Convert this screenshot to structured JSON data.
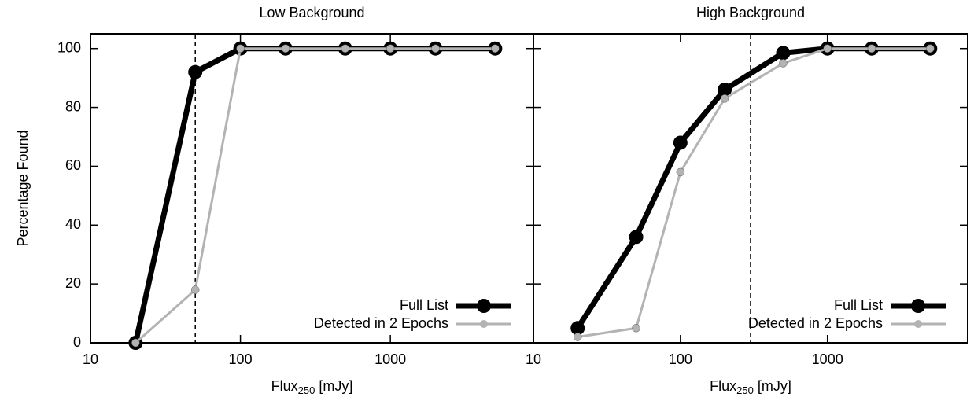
{
  "chart_data": [
    {
      "type": "line",
      "title": "Low Background",
      "ylabel": "Percentage Found",
      "xlabel": {
        "main": "Flux",
        "sub": "250",
        "unit": "[mJy]"
      },
      "x": [
        20,
        50,
        100,
        200,
        500,
        1000,
        2000,
        5000
      ],
      "series": [
        {
          "name": "Full List",
          "color": "#000000",
          "values": [
            0,
            92,
            100,
            100,
            100,
            100,
            100,
            100
          ]
        },
        {
          "name": "Detected in 2 Epochs",
          "color": "#b3b3b3",
          "values": [
            0,
            18,
            100,
            100,
            100,
            100,
            100,
            100
          ]
        }
      ],
      "xlim": [
        10,
        9000
      ],
      "ylim": [
        0,
        105
      ],
      "xticks": [
        10,
        100,
        1000
      ],
      "yticks": [
        0,
        20,
        40,
        60,
        80,
        100
      ],
      "log_x": true,
      "ytick_labels": true,
      "vline": 50,
      "legend": "lower right"
    },
    {
      "type": "line",
      "title": "High Background",
      "xlabel": {
        "main": "Flux",
        "sub": "250",
        "unit": "[mJy]"
      },
      "x": [
        20,
        50,
        100,
        200,
        500,
        1000,
        2000,
        5000
      ],
      "series": [
        {
          "name": "Full List",
          "color": "#000000",
          "values": [
            5,
            36,
            68,
            86,
            98.5,
            100,
            100,
            100
          ]
        },
        {
          "name": "Detected in 2 Epochs",
          "color": "#b3b3b3",
          "values": [
            2,
            5,
            58,
            83,
            95,
            100,
            100,
            100
          ]
        }
      ],
      "xlim": [
        10,
        9000
      ],
      "ylim": [
        0,
        105
      ],
      "xticks": [
        10,
        100,
        1000
      ],
      "yticks": [
        0,
        20,
        40,
        60,
        80,
        100
      ],
      "log_x": true,
      "ytick_labels": false,
      "vline": 300,
      "legend": "lower right"
    }
  ]
}
